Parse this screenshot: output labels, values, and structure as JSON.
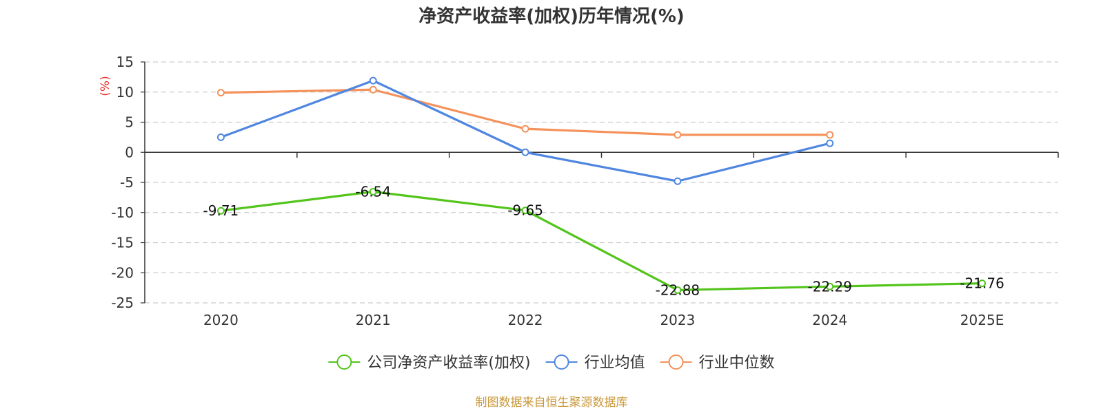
{
  "chart_data": {
    "type": "line",
    "title": "净资产收益率(加权)历年情况(%)",
    "ylabel": "(%)",
    "categories": [
      "2020",
      "2021",
      "2022",
      "2023",
      "2024",
      "2025E"
    ],
    "ylim": [
      -25,
      15
    ],
    "yticks": [
      15,
      10,
      5,
      0,
      -5,
      -10,
      -15,
      -20,
      -25
    ],
    "grid": true,
    "legend_position": "bottom",
    "series": [
      {
        "name": "公司净资产收益率(加权)",
        "color": "#52c41a",
        "values": [
          -9.71,
          -6.54,
          -9.65,
          -22.88,
          -22.29,
          -21.76
        ],
        "labels": [
          "-9.71",
          "-6.54",
          "-9.65",
          "-22.88",
          "-22.29",
          "-21.76"
        ]
      },
      {
        "name": "行业均值",
        "color": "#4f86e0",
        "values": [
          2.5,
          11.9,
          0.0,
          -4.8,
          1.5,
          null
        ]
      },
      {
        "name": "行业中位数",
        "color": "#f5915a",
        "values": [
          9.9,
          10.4,
          3.9,
          2.9,
          2.9,
          null
        ]
      }
    ],
    "source": "制图数据来自恒生聚源数据库"
  }
}
